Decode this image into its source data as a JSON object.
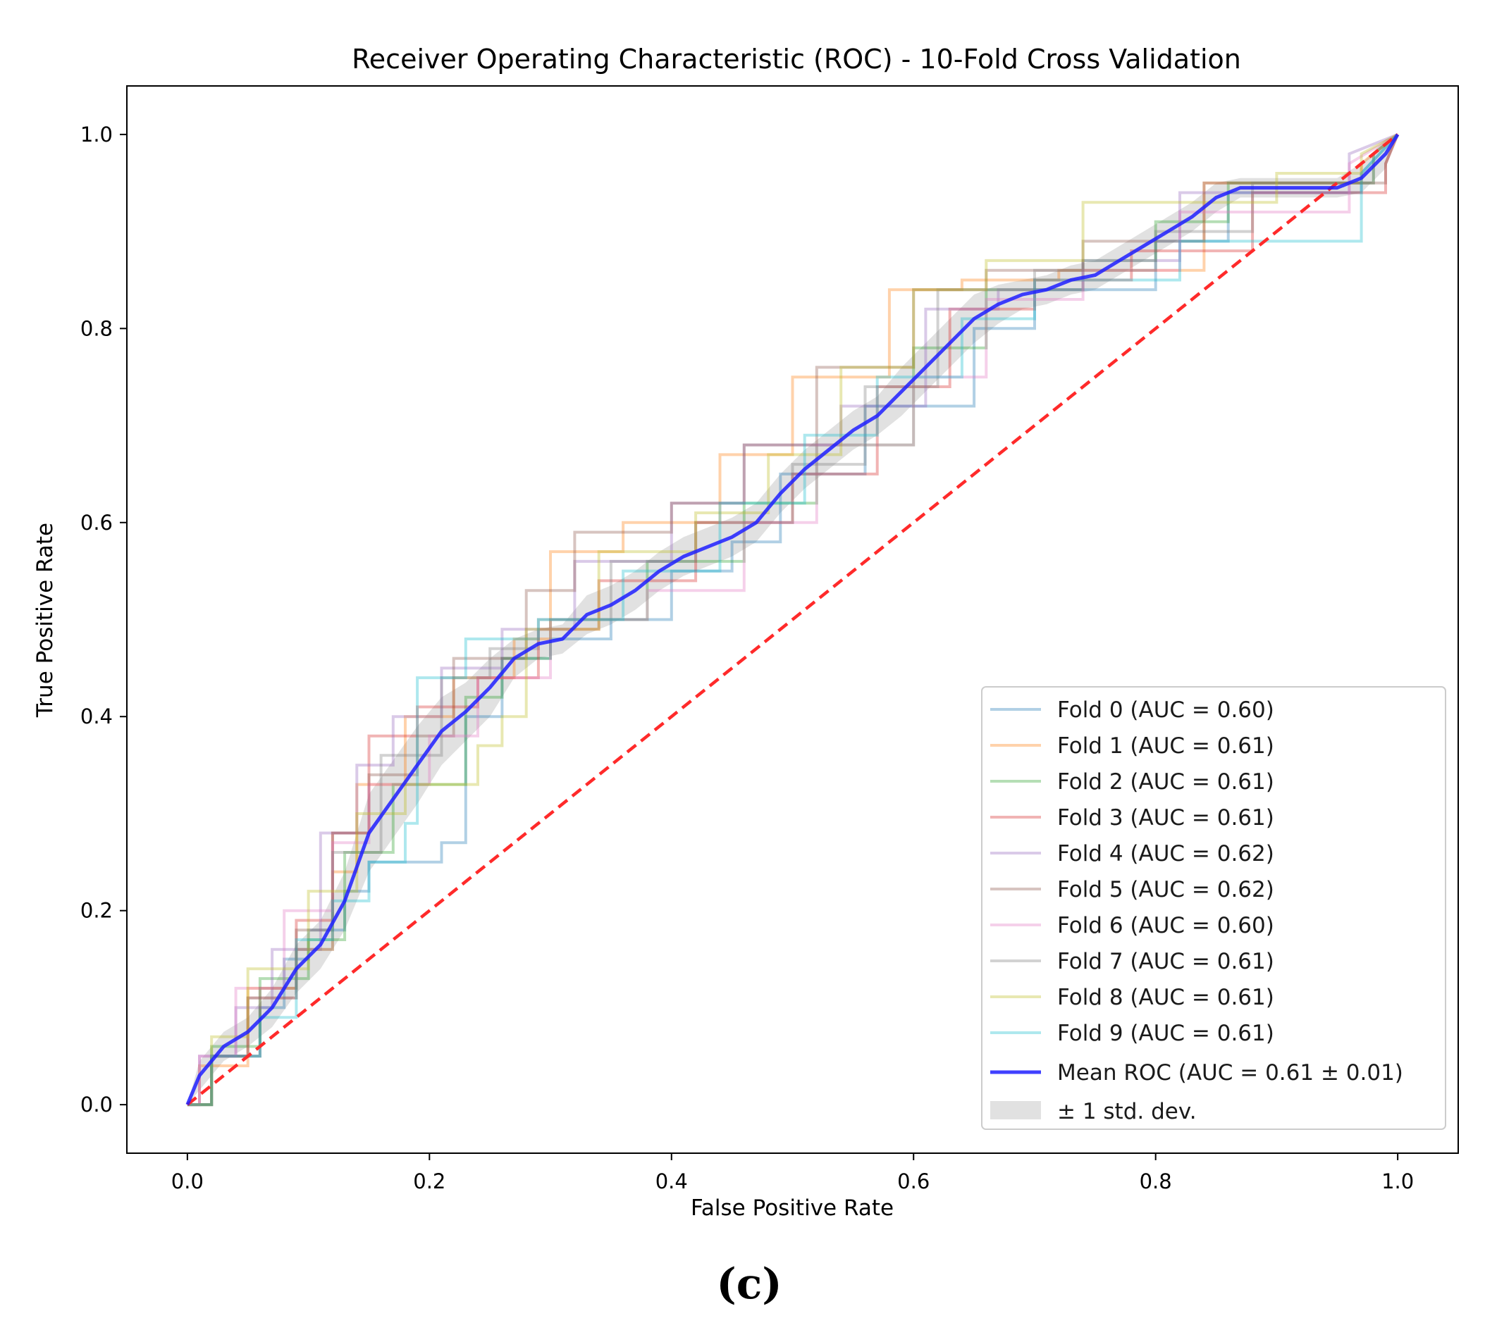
{
  "panel_label": "(c)",
  "chart_data": {
    "type": "line",
    "title": "Receiver Operating Characteristic (ROC) - 10-Fold Cross Validation",
    "xlabel": "False Positive Rate",
    "ylabel": "True Positive Rate",
    "xlim": [
      -0.05,
      1.05
    ],
    "ylim": [
      -0.05,
      1.05
    ],
    "xticks": [
      0.0,
      0.2,
      0.4,
      0.6,
      0.8,
      1.0
    ],
    "yticks": [
      0.0,
      0.2,
      0.4,
      0.6,
      0.8,
      1.0
    ],
    "xtick_labels": [
      "0.0",
      "0.2",
      "0.4",
      "0.6",
      "0.8",
      "1.0"
    ],
    "ytick_labels": [
      "0.0",
      "0.2",
      "0.4",
      "0.6",
      "0.8",
      "1.0"
    ],
    "legend_position": "lower-right",
    "chance_line": {
      "x": [
        0,
        1
      ],
      "y": [
        0,
        1
      ],
      "color": "#ff2a2a",
      "style": "dashed"
    },
    "series": [
      {
        "name": "Fold 0",
        "label": "Fold 0 (AUC = 0.60)",
        "auc": 0.6,
        "color": "#1f77b4",
        "x": [
          0,
          0.02,
          0.02,
          0.06,
          0.06,
          0.08,
          0.08,
          0.1,
          0.1,
          0.13,
          0.13,
          0.15,
          0.15,
          0.21,
          0.21,
          0.23,
          0.23,
          0.26,
          0.26,
          0.3,
          0.3,
          0.35,
          0.35,
          0.4,
          0.4,
          0.45,
          0.45,
          0.49,
          0.49,
          0.56,
          0.56,
          0.65,
          0.65,
          0.7,
          0.7,
          0.8,
          0.8,
          0.86,
          0.86,
          0.97,
          0.97,
          1.0
        ],
        "y": [
          0,
          0,
          0.05,
          0.05,
          0.1,
          0.1,
          0.15,
          0.15,
          0.18,
          0.18,
          0.22,
          0.22,
          0.25,
          0.25,
          0.27,
          0.27,
          0.4,
          0.4,
          0.46,
          0.46,
          0.48,
          0.48,
          0.5,
          0.5,
          0.55,
          0.55,
          0.58,
          0.58,
          0.65,
          0.65,
          0.72,
          0.72,
          0.8,
          0.8,
          0.84,
          0.84,
          0.89,
          0.89,
          0.94,
          0.94,
          0.96,
          1.0
        ]
      },
      {
        "name": "Fold 1",
        "label": "Fold 1 (AUC = 0.61)",
        "auc": 0.61,
        "color": "#ff7f0e",
        "x": [
          0,
          0.01,
          0.01,
          0.05,
          0.05,
          0.09,
          0.09,
          0.12,
          0.12,
          0.14,
          0.14,
          0.18,
          0.18,
          0.22,
          0.22,
          0.27,
          0.27,
          0.3,
          0.3,
          0.36,
          0.36,
          0.44,
          0.44,
          0.5,
          0.5,
          0.58,
          0.58,
          0.64,
          0.64,
          0.72,
          0.72,
          0.84,
          0.84,
          0.97,
          0.97,
          1.0
        ],
        "y": [
          0,
          0,
          0.04,
          0.04,
          0.12,
          0.12,
          0.16,
          0.16,
          0.24,
          0.24,
          0.33,
          0.33,
          0.4,
          0.4,
          0.44,
          0.44,
          0.48,
          0.48,
          0.57,
          0.57,
          0.6,
          0.6,
          0.67,
          0.67,
          0.75,
          0.75,
          0.84,
          0.84,
          0.85,
          0.85,
          0.86,
          0.86,
          0.95,
          0.95,
          0.97,
          1.0
        ]
      },
      {
        "name": "Fold 2",
        "label": "Fold 2 (AUC = 0.61)",
        "auc": 0.61,
        "color": "#2ca02c",
        "x": [
          0,
          0.02,
          0.02,
          0.06,
          0.06,
          0.1,
          0.1,
          0.13,
          0.13,
          0.17,
          0.17,
          0.23,
          0.23,
          0.26,
          0.26,
          0.3,
          0.3,
          0.38,
          0.38,
          0.46,
          0.46,
          0.52,
          0.52,
          0.6,
          0.6,
          0.66,
          0.66,
          0.74,
          0.74,
          0.8,
          0.8,
          0.86,
          0.86,
          0.98,
          0.98,
          1.0
        ],
        "y": [
          0,
          0,
          0.06,
          0.06,
          0.13,
          0.13,
          0.17,
          0.17,
          0.26,
          0.26,
          0.33,
          0.33,
          0.42,
          0.42,
          0.46,
          0.46,
          0.5,
          0.5,
          0.56,
          0.56,
          0.62,
          0.62,
          0.68,
          0.68,
          0.78,
          0.78,
          0.84,
          0.84,
          0.87,
          0.87,
          0.91,
          0.91,
          0.95,
          0.95,
          0.98,
          1.0
        ]
      },
      {
        "name": "Fold 3",
        "label": "Fold 3 (AUC = 0.61)",
        "auc": 0.61,
        "color": "#d62728",
        "x": [
          0,
          0.02,
          0.02,
          0.05,
          0.05,
          0.09,
          0.09,
          0.12,
          0.12,
          0.15,
          0.15,
          0.19,
          0.19,
          0.24,
          0.24,
          0.29,
          0.29,
          0.34,
          0.34,
          0.42,
          0.42,
          0.5,
          0.5,
          0.57,
          0.57,
          0.63,
          0.63,
          0.7,
          0.7,
          0.78,
          0.78,
          0.88,
          0.88,
          0.99,
          0.99,
          1.0
        ],
        "y": [
          0,
          0,
          0.05,
          0.05,
          0.11,
          0.11,
          0.19,
          0.19,
          0.28,
          0.28,
          0.38,
          0.38,
          0.41,
          0.41,
          0.44,
          0.44,
          0.49,
          0.49,
          0.54,
          0.54,
          0.6,
          0.6,
          0.65,
          0.65,
          0.74,
          0.74,
          0.82,
          0.82,
          0.85,
          0.85,
          0.88,
          0.88,
          0.94,
          0.94,
          0.97,
          1.0
        ]
      },
      {
        "name": "Fold 4",
        "label": "Fold 4 (AUC = 0.62)",
        "auc": 0.62,
        "color": "#9467bd",
        "x": [
          0,
          0.01,
          0.01,
          0.04,
          0.04,
          0.07,
          0.07,
          0.11,
          0.11,
          0.14,
          0.14,
          0.17,
          0.17,
          0.21,
          0.21,
          0.26,
          0.26,
          0.32,
          0.32,
          0.4,
          0.4,
          0.46,
          0.46,
          0.54,
          0.54,
          0.61,
          0.61,
          0.67,
          0.67,
          0.74,
          0.74,
          0.82,
          0.82,
          0.96,
          0.96,
          1.0
        ],
        "y": [
          0,
          0,
          0.05,
          0.05,
          0.1,
          0.1,
          0.16,
          0.16,
          0.28,
          0.28,
          0.35,
          0.35,
          0.4,
          0.4,
          0.45,
          0.45,
          0.49,
          0.49,
          0.56,
          0.56,
          0.62,
          0.62,
          0.68,
          0.68,
          0.72,
          0.72,
          0.82,
          0.82,
          0.84,
          0.84,
          0.87,
          0.87,
          0.94,
          0.94,
          0.98,
          1.0
        ]
      },
      {
        "name": "Fold 5",
        "label": "Fold 5 (AUC = 0.62)",
        "auc": 0.62,
        "color": "#8c564b",
        "x": [
          0,
          0.02,
          0.02,
          0.06,
          0.06,
          0.09,
          0.09,
          0.12,
          0.12,
          0.15,
          0.15,
          0.19,
          0.19,
          0.22,
          0.22,
          0.28,
          0.28,
          0.32,
          0.32,
          0.4,
          0.4,
          0.46,
          0.46,
          0.52,
          0.52,
          0.6,
          0.6,
          0.66,
          0.66,
          0.74,
          0.74,
          0.84,
          0.84,
          0.99,
          0.99,
          1.0
        ],
        "y": [
          0,
          0,
          0.05,
          0.05,
          0.12,
          0.12,
          0.18,
          0.18,
          0.28,
          0.28,
          0.34,
          0.34,
          0.38,
          0.38,
          0.46,
          0.46,
          0.53,
          0.53,
          0.59,
          0.59,
          0.62,
          0.62,
          0.68,
          0.68,
          0.76,
          0.76,
          0.84,
          0.84,
          0.86,
          0.86,
          0.89,
          0.89,
          0.95,
          0.95,
          0.97,
          1.0
        ]
      },
      {
        "name": "Fold 6",
        "label": "Fold 6 (AUC = 0.60)",
        "auc": 0.6,
        "color": "#e377c2",
        "x": [
          0,
          0.01,
          0.01,
          0.04,
          0.04,
          0.08,
          0.08,
          0.12,
          0.12,
          0.15,
          0.15,
          0.2,
          0.2,
          0.24,
          0.24,
          0.3,
          0.3,
          0.38,
          0.38,
          0.46,
          0.46,
          0.52,
          0.52,
          0.6,
          0.6,
          0.66,
          0.66,
          0.74,
          0.74,
          0.82,
          0.82,
          0.96,
          0.96,
          1.0
        ],
        "y": [
          0,
          0,
          0.05,
          0.05,
          0.12,
          0.12,
          0.2,
          0.2,
          0.27,
          0.27,
          0.33,
          0.33,
          0.38,
          0.38,
          0.44,
          0.44,
          0.5,
          0.5,
          0.53,
          0.53,
          0.6,
          0.6,
          0.68,
          0.68,
          0.75,
          0.75,
          0.83,
          0.83,
          0.86,
          0.86,
          0.92,
          0.92,
          0.97,
          1.0
        ]
      },
      {
        "name": "Fold 7",
        "label": "Fold 7 (AUC = 0.61)",
        "auc": 0.61,
        "color": "#7f7f7f",
        "x": [
          0,
          0.02,
          0.02,
          0.05,
          0.05,
          0.09,
          0.09,
          0.12,
          0.12,
          0.16,
          0.16,
          0.21,
          0.21,
          0.25,
          0.25,
          0.29,
          0.29,
          0.35,
          0.35,
          0.42,
          0.42,
          0.5,
          0.5,
          0.56,
          0.56,
          0.62,
          0.62,
          0.7,
          0.7,
          0.8,
          0.8,
          0.88,
          0.88,
          0.98,
          0.98,
          1.0
        ],
        "y": [
          0,
          0,
          0.05,
          0.05,
          0.11,
          0.11,
          0.16,
          0.16,
          0.26,
          0.26,
          0.36,
          0.36,
          0.44,
          0.44,
          0.47,
          0.47,
          0.5,
          0.5,
          0.56,
          0.56,
          0.6,
          0.6,
          0.66,
          0.66,
          0.74,
          0.74,
          0.84,
          0.84,
          0.86,
          0.86,
          0.9,
          0.9,
          0.95,
          0.95,
          0.98,
          1.0
        ]
      },
      {
        "name": "Fold 8",
        "label": "Fold 8 (AUC = 0.61)",
        "auc": 0.61,
        "color": "#bcbd22",
        "x": [
          0,
          0.02,
          0.02,
          0.05,
          0.05,
          0.1,
          0.1,
          0.14,
          0.14,
          0.18,
          0.18,
          0.24,
          0.24,
          0.26,
          0.26,
          0.28,
          0.28,
          0.34,
          0.34,
          0.42,
          0.42,
          0.48,
          0.48,
          0.54,
          0.54,
          0.6,
          0.6,
          0.66,
          0.66,
          0.74,
          0.74,
          0.9,
          0.9,
          0.97,
          0.97,
          1.0
        ],
        "y": [
          0,
          0,
          0.07,
          0.07,
          0.14,
          0.14,
          0.22,
          0.22,
          0.3,
          0.3,
          0.33,
          0.33,
          0.37,
          0.37,
          0.4,
          0.4,
          0.49,
          0.49,
          0.57,
          0.57,
          0.61,
          0.61,
          0.67,
          0.67,
          0.76,
          0.76,
          0.84,
          0.84,
          0.87,
          0.87,
          0.93,
          0.93,
          0.96,
          0.96,
          0.98,
          1.0
        ]
      },
      {
        "name": "Fold 9",
        "label": "Fold 9 (AUC = 0.61)",
        "auc": 0.61,
        "color": "#17becf",
        "x": [
          0,
          0.02,
          0.02,
          0.06,
          0.06,
          0.09,
          0.09,
          0.12,
          0.12,
          0.15,
          0.15,
          0.18,
          0.18,
          0.19,
          0.19,
          0.23,
          0.23,
          0.29,
          0.29,
          0.36,
          0.36,
          0.44,
          0.44,
          0.51,
          0.51,
          0.57,
          0.57,
          0.64,
          0.64,
          0.7,
          0.7,
          0.82,
          0.82,
          0.97,
          0.97,
          1.0
        ],
        "y": [
          0,
          0,
          0.05,
          0.05,
          0.09,
          0.09,
          0.17,
          0.17,
          0.21,
          0.21,
          0.25,
          0.25,
          0.29,
          0.29,
          0.44,
          0.44,
          0.48,
          0.48,
          0.5,
          0.5,
          0.55,
          0.55,
          0.62,
          0.62,
          0.69,
          0.69,
          0.75,
          0.75,
          0.81,
          0.81,
          0.85,
          0.85,
          0.89,
          0.89,
          0.96,
          1.0
        ]
      }
    ],
    "mean_roc": {
      "name": "Mean ROC",
      "label": "Mean ROC (AUC = 0.61 ± 0.01)",
      "auc": 0.61,
      "auc_std": 0.01,
      "color": "#1f1fff",
      "x": [
        0,
        0.01,
        0.03,
        0.05,
        0.07,
        0.09,
        0.11,
        0.13,
        0.15,
        0.17,
        0.19,
        0.21,
        0.23,
        0.25,
        0.27,
        0.29,
        0.31,
        0.33,
        0.35,
        0.37,
        0.39,
        0.41,
        0.43,
        0.45,
        0.47,
        0.49,
        0.51,
        0.53,
        0.55,
        0.57,
        0.59,
        0.61,
        0.63,
        0.65,
        0.67,
        0.69,
        0.71,
        0.73,
        0.75,
        0.77,
        0.79,
        0.81,
        0.83,
        0.85,
        0.87,
        0.89,
        0.91,
        0.93,
        0.95,
        0.97,
        0.99,
        1.0
      ],
      "y": [
        0,
        0.03,
        0.06,
        0.075,
        0.1,
        0.14,
        0.165,
        0.21,
        0.28,
        0.315,
        0.35,
        0.385,
        0.405,
        0.43,
        0.46,
        0.475,
        0.48,
        0.505,
        0.515,
        0.53,
        0.55,
        0.565,
        0.575,
        0.585,
        0.6,
        0.63,
        0.655,
        0.675,
        0.695,
        0.71,
        0.735,
        0.76,
        0.785,
        0.81,
        0.825,
        0.835,
        0.84,
        0.85,
        0.855,
        0.87,
        0.885,
        0.9,
        0.915,
        0.935,
        0.945,
        0.945,
        0.945,
        0.945,
        0.945,
        0.955,
        0.98,
        1.0
      ]
    },
    "std_band": {
      "label": "± 1 std. dev.",
      "color": "#bdbdbd",
      "std": [
        0,
        0.015,
        0.015,
        0.015,
        0.02,
        0.025,
        0.025,
        0.03,
        0.04,
        0.04,
        0.04,
        0.035,
        0.03,
        0.03,
        0.02,
        0.015,
        0.015,
        0.02,
        0.02,
        0.02,
        0.02,
        0.02,
        0.02,
        0.02,
        0.02,
        0.02,
        0.02,
        0.02,
        0.02,
        0.02,
        0.025,
        0.025,
        0.025,
        0.025,
        0.02,
        0.015,
        0.015,
        0.015,
        0.015,
        0.015,
        0.015,
        0.015,
        0.015,
        0.015,
        0.01,
        0.01,
        0.01,
        0.01,
        0.01,
        0.015,
        0.015,
        0
      ]
    }
  }
}
